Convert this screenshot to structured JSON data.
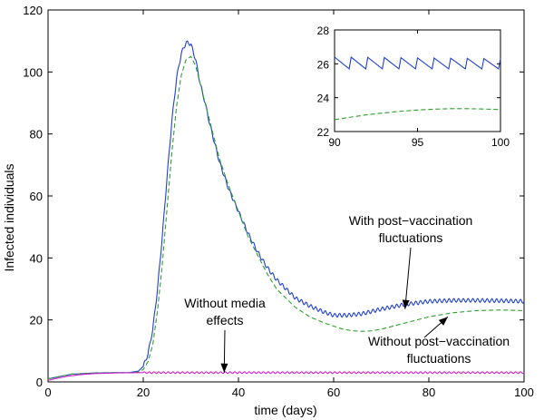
{
  "chart_data": [
    {
      "type": "line",
      "title": "",
      "xlabel": "time (days)",
      "ylabel": "Infected individuals",
      "xlim": [
        0,
        100
      ],
      "ylim": [
        0,
        120
      ],
      "xticks": [
        0,
        20,
        40,
        60,
        80,
        100
      ],
      "yticks": [
        0,
        20,
        40,
        60,
        80,
        100,
        120
      ],
      "grid": false,
      "series": [
        {
          "color": "#1f3fcf",
          "style": "solid",
          "ripple_amplitude": 0.6,
          "ripple_period": 1,
          "x": [
            0,
            5,
            10,
            15,
            17,
            19,
            20,
            21,
            22,
            23,
            24,
            25,
            26,
            27,
            28,
            29,
            30,
            31,
            32,
            33,
            34,
            35,
            36,
            38,
            40,
            42,
            44,
            46,
            48,
            50,
            52,
            55,
            58,
            60,
            63,
            66,
            70,
            75,
            80,
            85,
            90,
            95,
            100
          ],
          "y": [
            1,
            2.5,
            2.9,
            3,
            3,
            3.5,
            5,
            9,
            17,
            30,
            47,
            66,
            84,
            98,
            106,
            109.5,
            109,
            104,
            96,
            90,
            83,
            77,
            71,
            62,
            55,
            48,
            42,
            37,
            33,
            30,
            27,
            24.5,
            22.5,
            21.5,
            21.5,
            22,
            23.5,
            25,
            26,
            26.3,
            26.3,
            26.2,
            26
          ]
        },
        {
          "color": "#2e9e2e",
          "style": "dashed",
          "x": [
            0,
            5,
            10,
            15,
            17,
            19,
            20,
            21,
            22,
            23,
            24,
            25,
            26,
            27,
            28,
            29,
            30,
            31,
            32,
            33,
            34,
            35,
            36,
            38,
            40,
            42,
            44,
            46,
            48,
            50,
            52,
            55,
            58,
            60,
            62,
            64,
            66,
            68,
            70,
            75,
            80,
            85,
            90,
            95,
            100
          ],
          "y": [
            1,
            2.5,
            2.9,
            3,
            3,
            3.2,
            4,
            6.5,
            12,
            23,
            38,
            56,
            74,
            89,
            99,
            104,
            105,
            102,
            96,
            90,
            84,
            78,
            72,
            63,
            55,
            47,
            41,
            35,
            30,
            27,
            24,
            21,
            19,
            18,
            17,
            16.5,
            16.3,
            16.5,
            17,
            19,
            21,
            22.3,
            23,
            23.2,
            23
          ]
        },
        {
          "color": "#cc22cc",
          "style": "solid",
          "ripple_amplitude": 0.25,
          "ripple_period": 1,
          "x": [
            0,
            2,
            4,
            6,
            8,
            10,
            15,
            20,
            30,
            40,
            50,
            60,
            70,
            80,
            90,
            100
          ],
          "y": [
            0.5,
            1.2,
            1.8,
            2.2,
            2.5,
            2.7,
            2.9,
            3,
            3,
            3,
            3,
            3,
            3,
            3,
            3,
            3
          ]
        }
      ],
      "annotations": [
        {
          "lines": [
            "With post−vaccination",
            "fluctuations"
          ],
          "arrow_to": [
            75,
            23.5
          ]
        },
        {
          "lines": [
            "Without media",
            "effects"
          ],
          "arrow_to": [
            37,
            3
          ]
        },
        {
          "lines": [
            "Without post−vaccination",
            "fluctuations"
          ],
          "arrow_to": [
            84,
            21
          ]
        }
      ]
    },
    {
      "type": "line",
      "title": "",
      "xlabel": "",
      "ylabel": "",
      "xlim": [
        90,
        100
      ],
      "ylim": [
        22,
        28
      ],
      "xticks": [
        90,
        95,
        100
      ],
      "yticks": [
        22,
        24,
        26,
        28
      ],
      "grid": false,
      "series": [
        {
          "color": "#1f3fcf",
          "style": "sawtooth",
          "x": [
            90,
            100
          ],
          "y_high": [
            26.4,
            26.3
          ],
          "y_low": [
            25.7,
            25.7
          ],
          "teeth": 10
        },
        {
          "color": "#2e9e2e",
          "style": "dashed",
          "x": [
            90,
            91,
            92,
            93,
            94,
            95,
            96,
            97,
            98,
            99,
            100
          ],
          "y": [
            22.7,
            22.85,
            23,
            23.1,
            23.2,
            23.27,
            23.32,
            23.35,
            23.35,
            23.33,
            23.3
          ]
        }
      ]
    }
  ]
}
